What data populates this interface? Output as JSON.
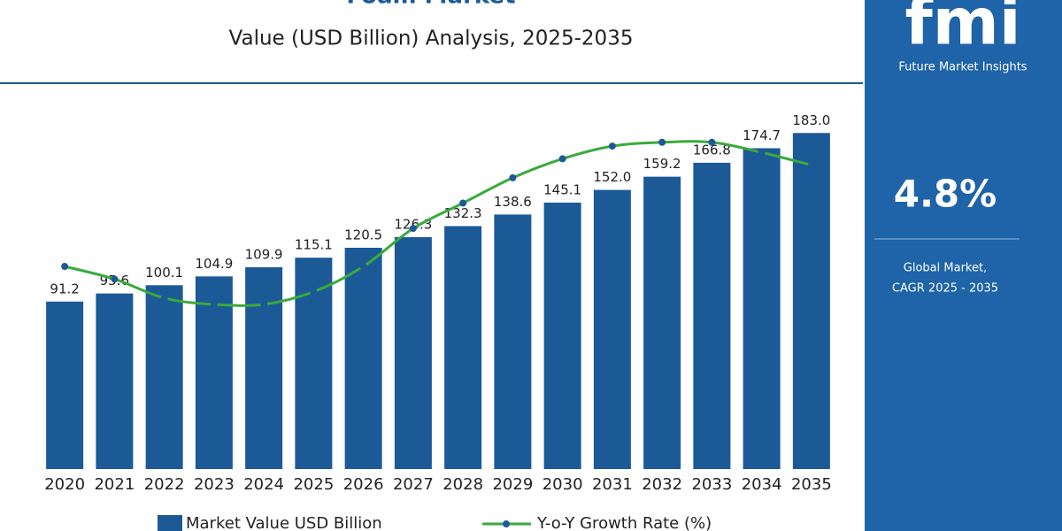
{
  "chart_data": {
    "type": "bar",
    "title": "Foam Market",
    "subtitle": "Value (USD Billion) Analysis, 2025-2035",
    "categories": [
      "2020",
      "2021",
      "2022",
      "2023",
      "2024",
      "2025",
      "2026",
      "2027",
      "2028",
      "2029",
      "2030",
      "2031",
      "2032",
      "2033",
      "2034",
      "2035"
    ],
    "series": [
      {
        "name": "Market Value USD Billion",
        "color": "#1b5a97",
        "values": [
          91.2,
          95.6,
          100.1,
          104.9,
          109.9,
          115.1,
          120.5,
          126.3,
          132.3,
          138.6,
          145.1,
          152.0,
          159.2,
          166.8,
          174.7,
          183.0
        ],
        "value_labels": [
          "91.2",
          "95.6",
          "100.1",
          "104.9",
          "109.9",
          "115.1",
          "120.5",
          "126.3",
          "132.3",
          "138.6",
          "145.1",
          "152.0",
          "159.2",
          "166.8",
          "174.7",
          "183.0"
        ]
      },
      {
        "name": "Y-o-Y Growth Rate (%)",
        "type": "line",
        "axis": "y2",
        "color": "#3aaa3a",
        "values": [
          4.6,
          4.5,
          4.35,
          4.3,
          4.3,
          4.4,
          4.6,
          4.9,
          5.1,
          5.3,
          5.45,
          5.55,
          5.58,
          5.58,
          5.5,
          5.4
        ]
      }
    ],
    "ylim": [
      0,
      200
    ],
    "y2lim": [
      3.0,
      5.9
    ]
  },
  "sidebar": {
    "logo": "fmi",
    "brand": "Future Market Insights",
    "cagr": "4.8%",
    "caption": [
      "Global Market,",
      "CAGR 2025 - 2035"
    ]
  }
}
